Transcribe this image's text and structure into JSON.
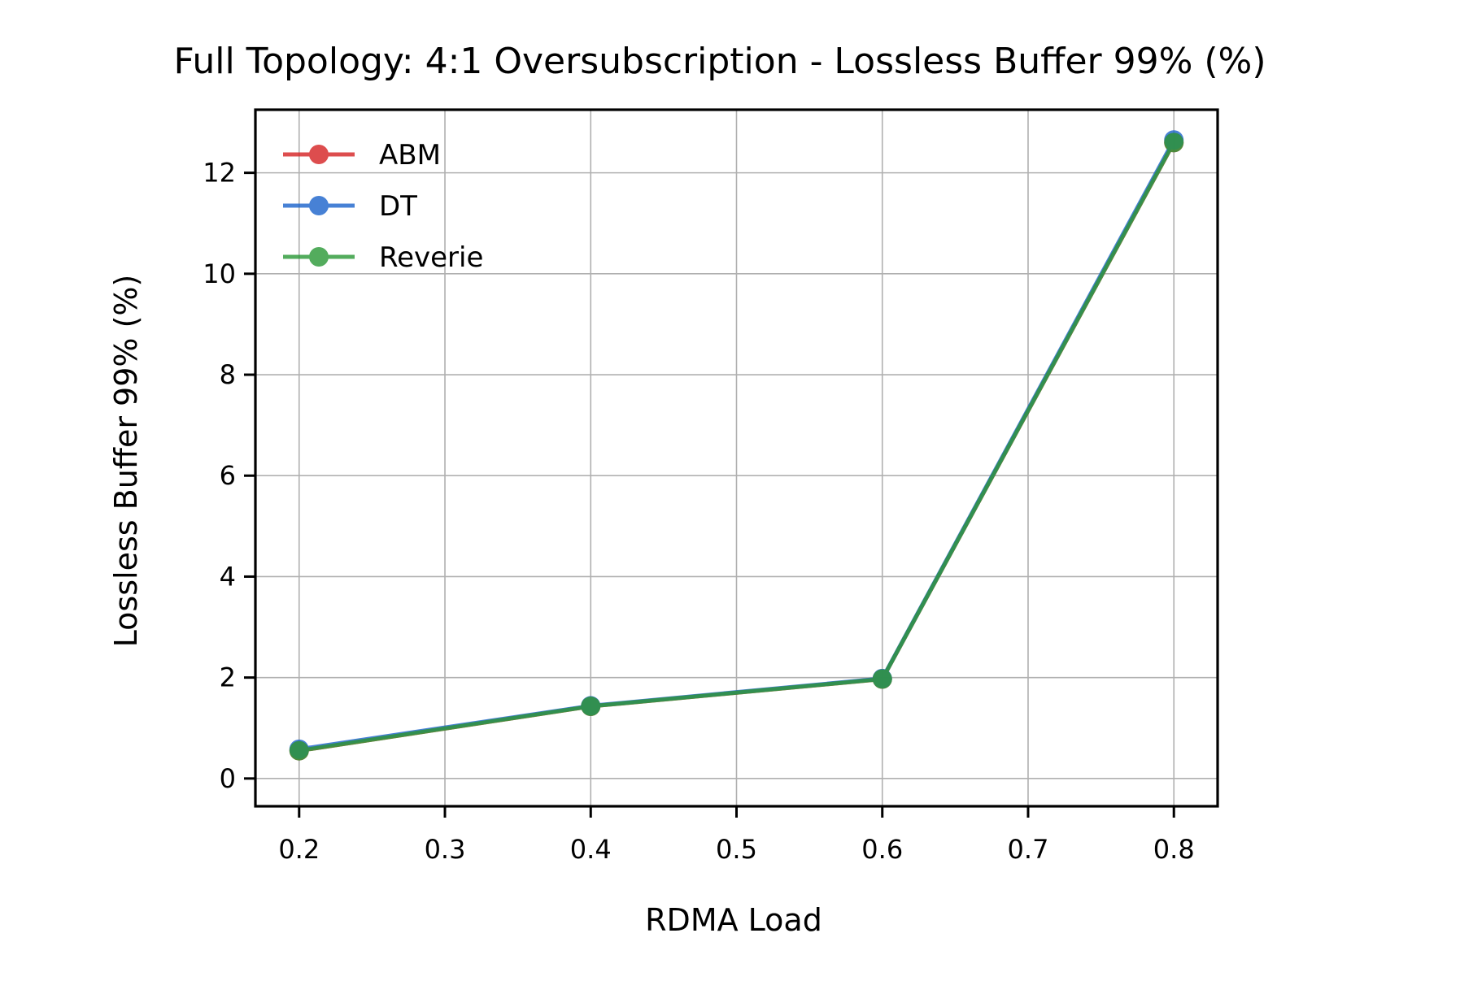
{
  "chart_data": {
    "type": "line",
    "title": "Full Topology: 4:1 Oversubscription - Lossless Buffer 99% (%)",
    "xlabel": "RDMA Load",
    "ylabel": "Lossless Buffer 99% (%)",
    "xlim": [
      0.17,
      0.83
    ],
    "ylim": [
      -0.55,
      13.25
    ],
    "x_ticks": [
      "0.2",
      "0.3",
      "0.4",
      "0.5",
      "0.6",
      "0.7",
      "0.8"
    ],
    "y_ticks": [
      "0",
      "2",
      "4",
      "6",
      "8",
      "10",
      "12"
    ],
    "grid": true,
    "legend_position": "top-left",
    "x": [
      0.2,
      0.4,
      0.6,
      0.8
    ],
    "series": [
      {
        "name": "ABM",
        "color": "#d62728",
        "values": [
          0.55,
          1.43,
          1.97,
          12.6
        ]
      },
      {
        "name": "DT",
        "color": "#1f66cc",
        "values": [
          0.58,
          1.44,
          1.98,
          12.65
        ]
      },
      {
        "name": "Reverie",
        "color": "#2e9a3a",
        "values": [
          0.55,
          1.43,
          1.97,
          12.6
        ]
      }
    ]
  }
}
